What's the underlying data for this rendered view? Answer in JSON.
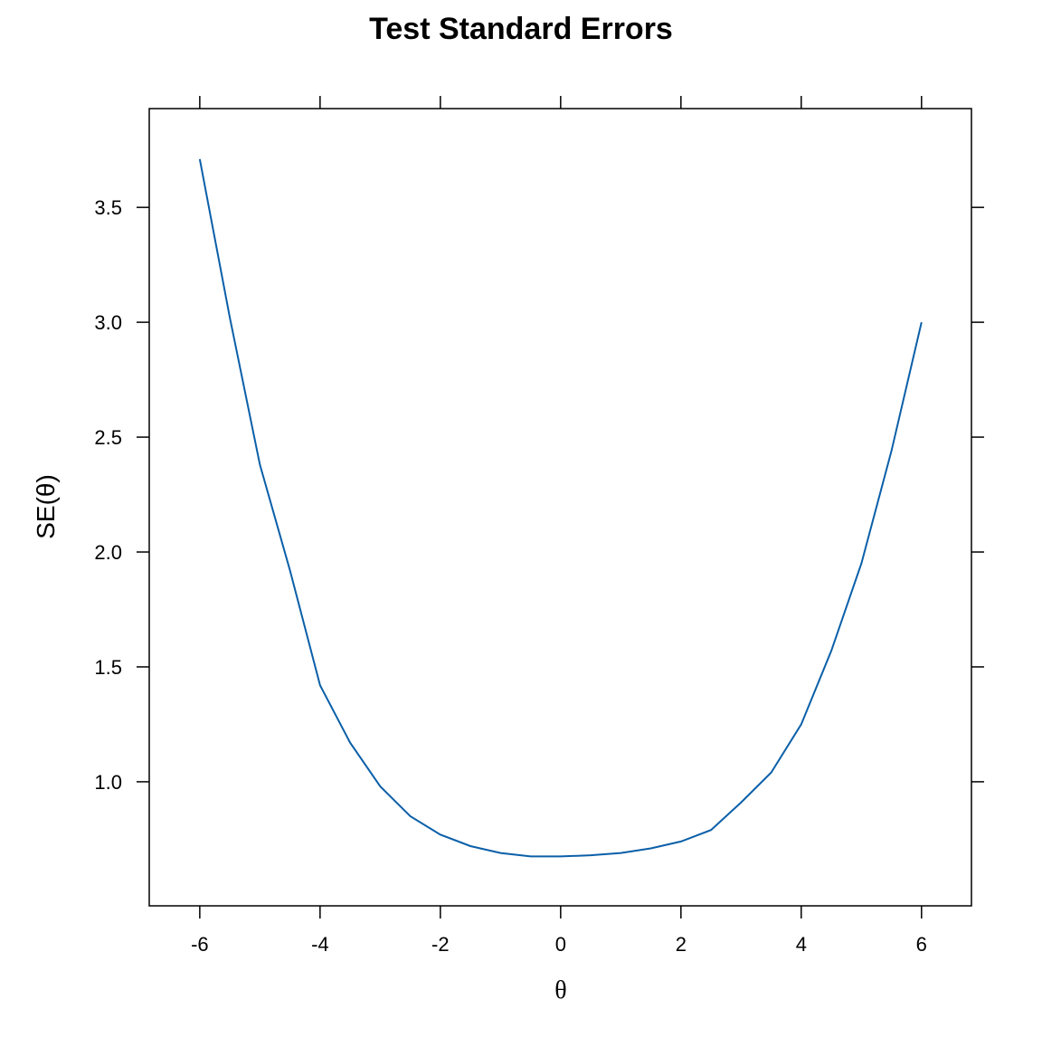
{
  "chart_data": {
    "type": "line",
    "title": "Test Standard Errors",
    "x_label": "θ",
    "y_label": "SE(θ)",
    "x": [
      -6,
      -5.5,
      -5,
      -4.5,
      -4,
      -3.5,
      -3,
      -2.5,
      -2,
      -1.5,
      -1,
      -0.5,
      0,
      0.5,
      1,
      1.5,
      2,
      2.5,
      3,
      3.5,
      4,
      4.5,
      5,
      5.5,
      6
    ],
    "series": [
      {
        "name": "SE",
        "color": "#0a5fa8",
        "values": [
          3.71,
          3.02,
          2.38,
          1.92,
          1.42,
          1.17,
          0.98,
          0.85,
          0.77,
          0.72,
          0.69,
          0.675,
          0.675,
          0.68,
          0.69,
          0.71,
          0.74,
          0.79,
          0.91,
          1.04,
          1.25,
          1.57,
          1.95,
          2.44,
          3.0
        ]
      }
    ],
    "xlim": [
      -6.84,
      6.83
    ],
    "ylim": [
      0.46,
      3.93
    ],
    "xticks": [
      -6,
      -4,
      -2,
      0,
      2,
      4,
      6
    ],
    "yticks": [
      {
        "value": 1,
        "label": "1.0"
      },
      1.5,
      {
        "value": 2,
        "label": "2.0"
      },
      2.5,
      {
        "value": 3,
        "label": "3.0"
      },
      3.5
    ]
  }
}
